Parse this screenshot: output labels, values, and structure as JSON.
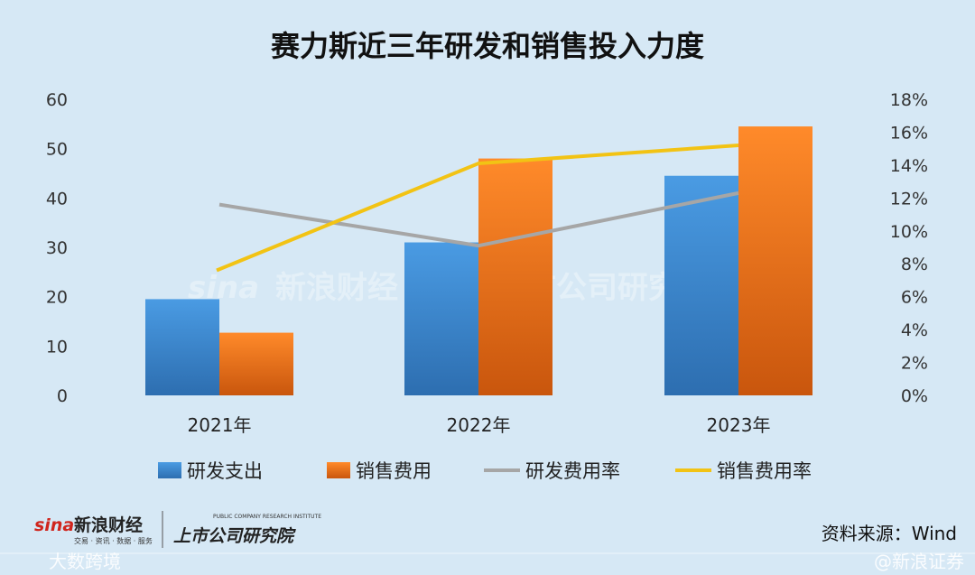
{
  "chart_data": {
    "type": "bar",
    "title": "赛力斯近三年研发和销售投入力度",
    "categories": [
      "2021年",
      "2022年",
      "2023年"
    ],
    "series": [
      {
        "name": "研发支出",
        "kind": "bar",
        "axis": "left",
        "values": [
          19.5,
          31.0,
          44.5
        ],
        "color": "#3d8bd6"
      },
      {
        "name": "销售费用",
        "kind": "bar",
        "axis": "left",
        "values": [
          12.7,
          48.0,
          54.5
        ],
        "color": "#f07a1c"
      },
      {
        "name": "研发费用率",
        "kind": "line",
        "axis": "right",
        "values": [
          0.116,
          0.091,
          0.123
        ],
        "color": "#a6a6a6"
      },
      {
        "name": "销售费用率",
        "kind": "line",
        "axis": "right",
        "values": [
          0.076,
          0.141,
          0.152
        ],
        "color": "#f2c314"
      }
    ],
    "ylim": [
      0,
      60
    ],
    "yticks": [
      "60",
      "50",
      "40",
      "30",
      "20",
      "10",
      "0"
    ],
    "y2lim": [
      0,
      0.18
    ],
    "y2ticks": [
      "18%",
      "16%",
      "14%",
      "12%",
      "10%",
      "8%",
      "6%",
      "4%",
      "2%",
      "0%"
    ],
    "legend_position": "bottom",
    "grid": false
  },
  "source": "资料来源：Wind",
  "watermark": {
    "sina": "sina",
    "finance": "新浪财经",
    "sub": "交易 · 资讯 · 数据 · 服务",
    "institute": "上市公司研究院",
    "institute_en": "PUBLIC COMPANY RESEARCH INSTITUTE"
  },
  "footer": {
    "left": "大数跨境",
    "right": "@新浪证券"
  }
}
